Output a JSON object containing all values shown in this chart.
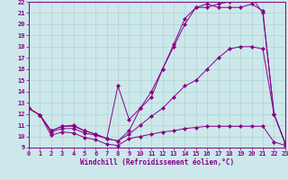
{
  "xlabel": "Windchill (Refroidissement éolien,°C)",
  "bg_color": "#cce8ea",
  "line_color": "#880088",
  "grid_color": "#aacccc",
  "xmin": 0,
  "xmax": 23,
  "ymin": 9,
  "ymax": 22,
  "lines": [
    {
      "x": [
        0,
        1,
        2,
        3,
        4,
        5,
        6,
        7,
        8,
        9,
        10,
        11,
        12,
        13,
        14,
        15,
        16,
        17,
        18,
        19,
        20,
        21,
        22,
        23
      ],
      "y": [
        12.5,
        11.9,
        10.1,
        10.4,
        10.3,
        9.9,
        9.7,
        9.3,
        9.2,
        9.8,
        10.0,
        10.2,
        10.4,
        10.5,
        10.7,
        10.8,
        10.9,
        10.9,
        10.9,
        10.9,
        10.9,
        10.9,
        9.5,
        9.2
      ]
    },
    {
      "x": [
        0,
        1,
        2,
        3,
        4,
        5,
        6,
        7,
        8,
        9,
        10,
        11,
        12,
        13,
        14,
        15,
        16,
        17,
        18,
        19,
        20,
        21,
        22,
        23
      ],
      "y": [
        12.5,
        11.9,
        10.4,
        10.7,
        10.7,
        10.3,
        10.1,
        9.8,
        9.6,
        10.2,
        11.0,
        11.8,
        12.5,
        13.5,
        14.5,
        15.0,
        16.0,
        17.0,
        17.8,
        18.0,
        18.0,
        17.8,
        12.0,
        9.4
      ]
    },
    {
      "x": [
        0,
        1,
        2,
        3,
        4,
        5,
        6,
        7,
        8,
        9,
        10,
        11,
        12,
        13,
        14,
        15,
        16,
        17,
        18,
        19,
        20,
        21,
        22,
        23
      ],
      "y": [
        12.5,
        11.9,
        10.5,
        10.9,
        10.9,
        10.5,
        10.2,
        9.8,
        9.6,
        10.5,
        12.5,
        14.0,
        16.0,
        18.0,
        20.0,
        21.5,
        21.5,
        21.8,
        22.0,
        22.2,
        22.4,
        21.0,
        12.0,
        9.4
      ]
    },
    {
      "x": [
        0,
        1,
        2,
        3,
        4,
        5,
        6,
        7,
        8,
        9,
        10,
        11,
        12,
        13,
        14,
        15,
        16,
        17,
        18,
        19,
        20,
        21,
        22,
        23
      ],
      "y": [
        12.5,
        11.9,
        10.5,
        10.9,
        11.0,
        10.5,
        10.2,
        9.8,
        14.5,
        11.5,
        12.5,
        13.5,
        16.0,
        18.2,
        20.5,
        21.5,
        21.8,
        21.5,
        21.5,
        21.5,
        21.8,
        21.2,
        12.0,
        9.4
      ]
    }
  ],
  "xticks": [
    0,
    1,
    2,
    3,
    4,
    5,
    6,
    7,
    8,
    9,
    10,
    11,
    12,
    13,
    14,
    15,
    16,
    17,
    18,
    19,
    20,
    21,
    22,
    23
  ],
  "yticks": [
    9,
    10,
    11,
    12,
    13,
    14,
    15,
    16,
    17,
    18,
    19,
    20,
    21,
    22
  ],
  "tick_fontsize": 5,
  "xlabel_fontsize": 5.5,
  "grid_lw": 0.4,
  "line_width": 0.7,
  "markersize": 2.2
}
